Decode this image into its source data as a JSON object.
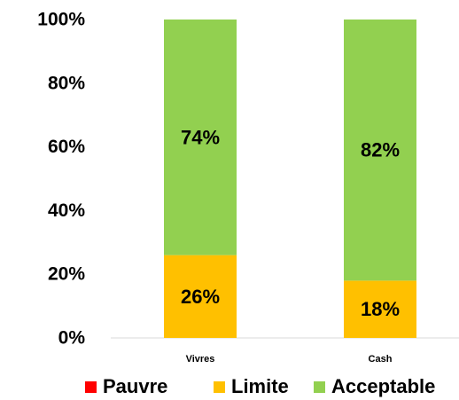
{
  "chart_data": {
    "type": "bar",
    "stacked": true,
    "categories": [
      "Vivres",
      "Cash"
    ],
    "series": [
      {
        "name": "Pauvre",
        "color": "#FF0000",
        "values": [
          0,
          0
        ]
      },
      {
        "name": "Limite",
        "color": "#FFC000",
        "values": [
          26,
          18
        ]
      },
      {
        "name": "Acceptable",
        "color": "#92D050",
        "values": [
          74,
          82
        ]
      }
    ],
    "data_labels": {
      "Limite": [
        "26%",
        "18%"
      ],
      "Acceptable": [
        "74%",
        "82%"
      ]
    },
    "ylim": [
      0,
      100
    ],
    "yticks": [
      0,
      20,
      40,
      60,
      80,
      100
    ],
    "ytick_labels": [
      "0%",
      "20%",
      "40%",
      "60%",
      "80%",
      "100%"
    ],
    "grid": false,
    "legend_position": "bottom"
  }
}
